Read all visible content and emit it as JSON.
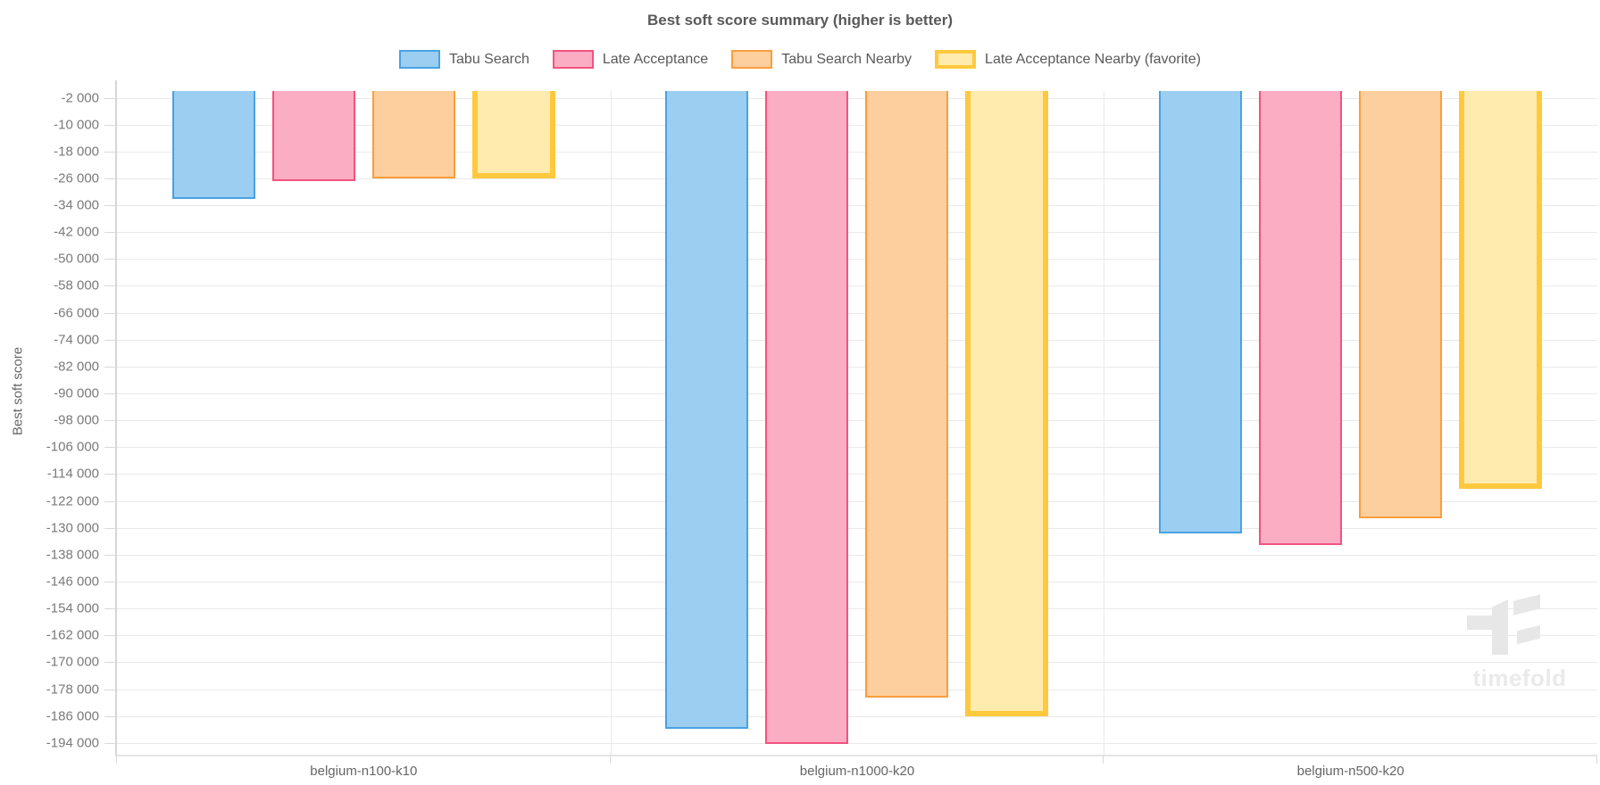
{
  "title": "Best soft score summary (higher is better)",
  "y_axis_title": "Best soft score",
  "watermark_text": "timefold",
  "chart_data": {
    "type": "bar",
    "title": "Best soft score summary (higher is better)",
    "xlabel": "",
    "ylabel": "Best soft score",
    "grid": true,
    "legend_position": "top",
    "ylim": [
      -197500,
      0
    ],
    "y_tick_step": -8000,
    "y_ticks": [
      -2000,
      -10000,
      -18000,
      -26000,
      -34000,
      -42000,
      -50000,
      -58000,
      -66000,
      -74000,
      -82000,
      -90000,
      -98000,
      -106000,
      -114000,
      -122000,
      -130000,
      -138000,
      -146000,
      -154000,
      -162000,
      -170000,
      -178000,
      -186000,
      -194000
    ],
    "categories": [
      "belgium-n100-k10",
      "belgium-n1000-k20",
      "belgium-n500-k20"
    ],
    "series": [
      {
        "name": "Tabu Search",
        "fill": "#9BCEF0",
        "stroke": "#49A2E4",
        "favorite": false,
        "values": [
          -32000,
          -189800,
          -131600
        ]
      },
      {
        "name": "Late Acceptance",
        "fill": "#FBAEC3",
        "stroke": "#F2537F",
        "favorite": false,
        "values": [
          -26900,
          -194200,
          -135200
        ]
      },
      {
        "name": "Tabu Search Nearby",
        "fill": "#FDCF9E",
        "stroke": "#FA9E3D",
        "favorite": false,
        "values": [
          -26100,
          -180500,
          -127200
        ]
      },
      {
        "name": "Late Acceptance Nearby (favorite)",
        "fill": "#FFEBAE",
        "stroke": "#FFC93E",
        "favorite": true,
        "values": [
          -25900,
          -186100,
          -118300
        ]
      }
    ]
  }
}
